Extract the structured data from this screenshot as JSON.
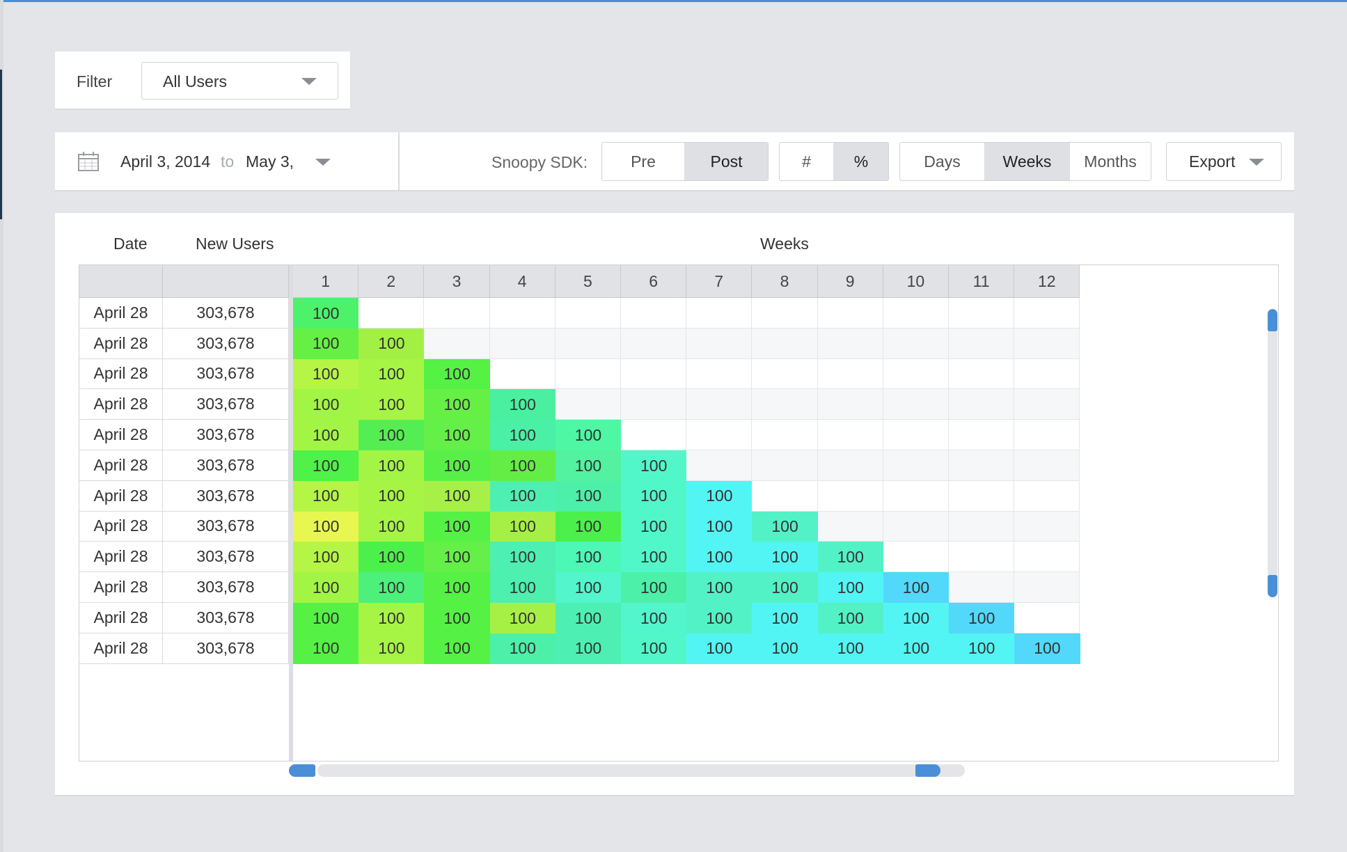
{
  "filter": {
    "label": "Filter",
    "value": "All Users"
  },
  "date_range": {
    "from": "April 3, 2014",
    "to_word": "to",
    "to": "May 3,"
  },
  "sdk": {
    "label": "Snoopy SDK:",
    "options": [
      "Pre",
      "Post"
    ],
    "active": "Post"
  },
  "unit": {
    "options": [
      "#",
      "%"
    ],
    "active": "%"
  },
  "period": {
    "options": [
      "Days",
      "Weeks",
      "Months"
    ],
    "active": "Weeks"
  },
  "export": {
    "label": "Export"
  },
  "table": {
    "date_header": "Date",
    "new_users_header": "New Users",
    "weeks_header": "Weeks",
    "week_columns": [
      "1",
      "2",
      "3",
      "4",
      "5",
      "6",
      "7",
      "8",
      "9",
      "10",
      "11",
      "12"
    ],
    "rows": [
      {
        "date": "April 28",
        "new_users": "303,678",
        "values": [
          "100"
        ],
        "colors": [
          "#4cf26a"
        ]
      },
      {
        "date": "April 28",
        "new_users": "303,678",
        "values": [
          "100",
          "100"
        ],
        "colors": [
          "#66f045",
          "#a3f045"
        ]
      },
      {
        "date": "April 28",
        "new_users": "303,678",
        "values": [
          "100",
          "100",
          "100"
        ],
        "colors": [
          "#b5f545",
          "#a6f545",
          "#55f145"
        ]
      },
      {
        "date": "April 28",
        "new_users": "303,678",
        "values": [
          "100",
          "100",
          "100",
          "100"
        ],
        "colors": [
          "#a1f545",
          "#a6f545",
          "#66f045",
          "#4af0a0"
        ]
      },
      {
        "date": "April 28",
        "new_users": "303,678",
        "values": [
          "100",
          "100",
          "100",
          "100",
          "100"
        ],
        "colors": [
          "#a3f545",
          "#55ee52",
          "#64f048",
          "#4af0a6",
          "#4df7a3"
        ]
      },
      {
        "date": "April 28",
        "new_users": "303,678",
        "values": [
          "100",
          "100",
          "100",
          "100",
          "100",
          "100"
        ],
        "colors": [
          "#4ef248",
          "#a3f545",
          "#58f048",
          "#64ee45",
          "#52f2a0",
          "#52f7c9"
        ]
      },
      {
        "date": "April 28",
        "new_users": "303,678",
        "values": [
          "100",
          "100",
          "100",
          "100",
          "100",
          "100",
          "100"
        ],
        "colors": [
          "#b5f545",
          "#a6f545",
          "#a7f048",
          "#4ef0b2",
          "#4df0a9",
          "#52f7c9",
          "#52f5f3"
        ]
      },
      {
        "date": "April 28",
        "new_users": "303,678",
        "values": [
          "100",
          "100",
          "100",
          "100",
          "100",
          "100",
          "100",
          "100"
        ],
        "colors": [
          "#e8f750",
          "#a6f545",
          "#55f145",
          "#a6f045",
          "#4cf04a",
          "#52f7c9",
          "#52f5f3",
          "#52f2c6"
        ]
      },
      {
        "date": "April 28",
        "new_users": "303,678",
        "values": [
          "100",
          "100",
          "100",
          "100",
          "100",
          "100",
          "100",
          "100",
          "100"
        ],
        "colors": [
          "#b5f545",
          "#4cf04a",
          "#64f048",
          "#4df0b2",
          "#4df7b5",
          "#52f7c9",
          "#52f5f3",
          "#52f5f3",
          "#52f2c6"
        ]
      },
      {
        "date": "April 28",
        "new_users": "303,678",
        "values": [
          "100",
          "100",
          "100",
          "100",
          "100",
          "100",
          "100",
          "100",
          "100",
          "100"
        ],
        "colors": [
          "#a3f545",
          "#4cf07a",
          "#55f145",
          "#4df0ae",
          "#52f5cc",
          "#4df0a9",
          "#52f2c6",
          "#52f2c6",
          "#52f5f3",
          "#52d8fa"
        ]
      },
      {
        "date": "April 28",
        "new_users": "303,678",
        "values": [
          "100",
          "100",
          "100",
          "100",
          "100",
          "100",
          "100",
          "100",
          "100",
          "100",
          "100"
        ],
        "colors": [
          "#55f145",
          "#a6f545",
          "#55f145",
          "#a6f045",
          "#4df0b2",
          "#52f5cc",
          "#52f2c6",
          "#52f5f3",
          "#52f2c6",
          "#52f5f3",
          "#52d8fa"
        ]
      },
      {
        "date": "April 28",
        "new_users": "303,678",
        "values": [
          "100",
          "100",
          "100",
          "100",
          "100",
          "100",
          "100",
          "100",
          "100",
          "100",
          "100",
          "100"
        ],
        "colors": [
          "#55f145",
          "#a6f545",
          "#55f145",
          "#4df0a9",
          "#4df0b2",
          "#52f7c9",
          "#52f5f3",
          "#52f5f3",
          "#52f5f3",
          "#52f5f3",
          "#52f5f3",
          "#52d8fa"
        ]
      }
    ]
  }
}
